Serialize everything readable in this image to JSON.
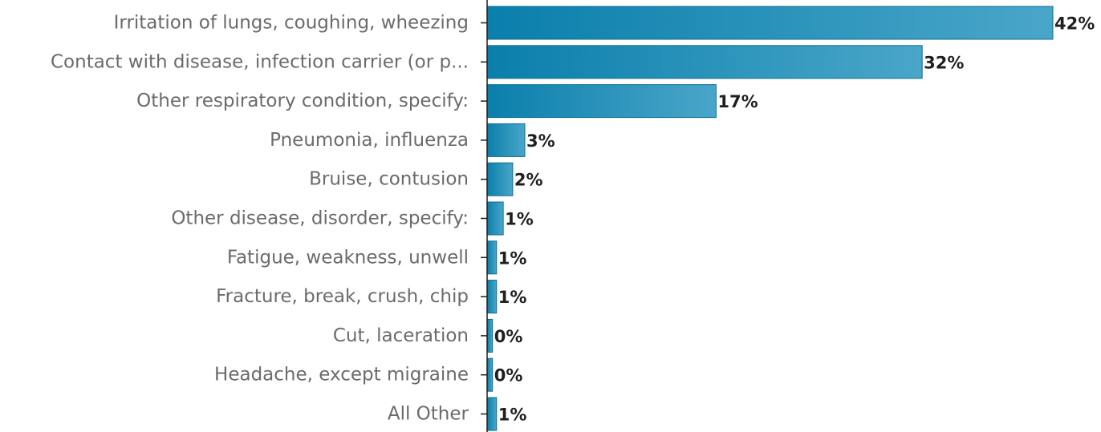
{
  "chart_data": {
    "type": "bar",
    "orientation": "horizontal",
    "categories": [
      "Irritation of lungs, coughing, wheezing",
      "Contact with disease, infection carrier (or p...",
      "Other respiratory condition, specify:",
      "Pneumonia, influenza",
      "Bruise, contusion",
      "Other disease, disorder, specify:",
      "Fatigue, weakness, unwell",
      "Fracture, break, crush, chip",
      "Cut, laceration",
      "Headache, except migraine",
      "All Other"
    ],
    "values": [
      42,
      32,
      17,
      3,
      2,
      1,
      1,
      1,
      0,
      0,
      1
    ],
    "value_labels": [
      "42%",
      "32%",
      "17%",
      "3%",
      "2%",
      "1%",
      "1%",
      "1%",
      "0%",
      "0%",
      "1%"
    ],
    "bar_magnitudes": [
      42,
      32.3,
      17,
      2.8,
      1.9,
      1.2,
      0.7,
      0.7,
      0.4,
      0.4,
      0.7
    ],
    "xlim": [
      0,
      42
    ],
    "title": "",
    "xlabel": "",
    "ylabel": "",
    "grid": false,
    "legend": "none",
    "colors": {
      "bar_dark": "#0a7fab",
      "bar_light": "#4aa6c9",
      "bar_stroke": "#0b6f93",
      "category_text": "#6b6b6b",
      "value_text": "#1f1f1f",
      "axis": "#1f1f1f"
    }
  }
}
